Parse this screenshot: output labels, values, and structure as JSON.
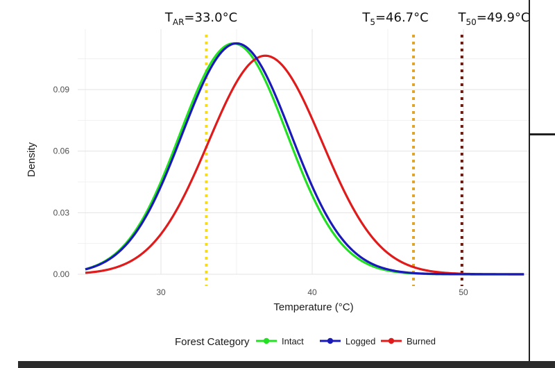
{
  "chart_data": {
    "type": "line",
    "title": "",
    "xlabel": "Temperature (°C)",
    "ylabel": "Density",
    "xlim": [
      25,
      54
    ],
    "ylim": [
      0,
      0.112
    ],
    "x_ticks": [
      30,
      40,
      50
    ],
    "y_ticks": [
      0.0,
      0.03,
      0.06,
      0.09
    ],
    "y_tick_labels": [
      "0.00",
      "0.03",
      "0.06",
      "0.09"
    ],
    "grid": true,
    "legend": {
      "title": "Forest Category",
      "placement": "bottom"
    },
    "series": [
      {
        "name": "Intact",
        "color": "#22e022",
        "mean": 34.8,
        "sd": 3.55,
        "peak": 0.1125
      },
      {
        "name": "Logged",
        "color": "#1a1ab8",
        "mean": 35.0,
        "sd": 3.6,
        "peak": 0.1125
      },
      {
        "name": "Burned",
        "color": "#e01b1b",
        "mean": 36.9,
        "sd": 3.75,
        "peak": 0.1065
      }
    ],
    "thresholds": [
      {
        "main": "T",
        "sub": "AR",
        "rest": "=33.0°C",
        "value": 33.0,
        "color": "#f5dc1e"
      },
      {
        "main": "T",
        "sub": "5",
        "rest": "=46.7°C",
        "value": 46.7,
        "color": "#e0a528"
      },
      {
        "main": "T",
        "sub": "50",
        "rest": "=49.9°C",
        "value": 49.9,
        "color": "#6b1a0e"
      }
    ]
  }
}
